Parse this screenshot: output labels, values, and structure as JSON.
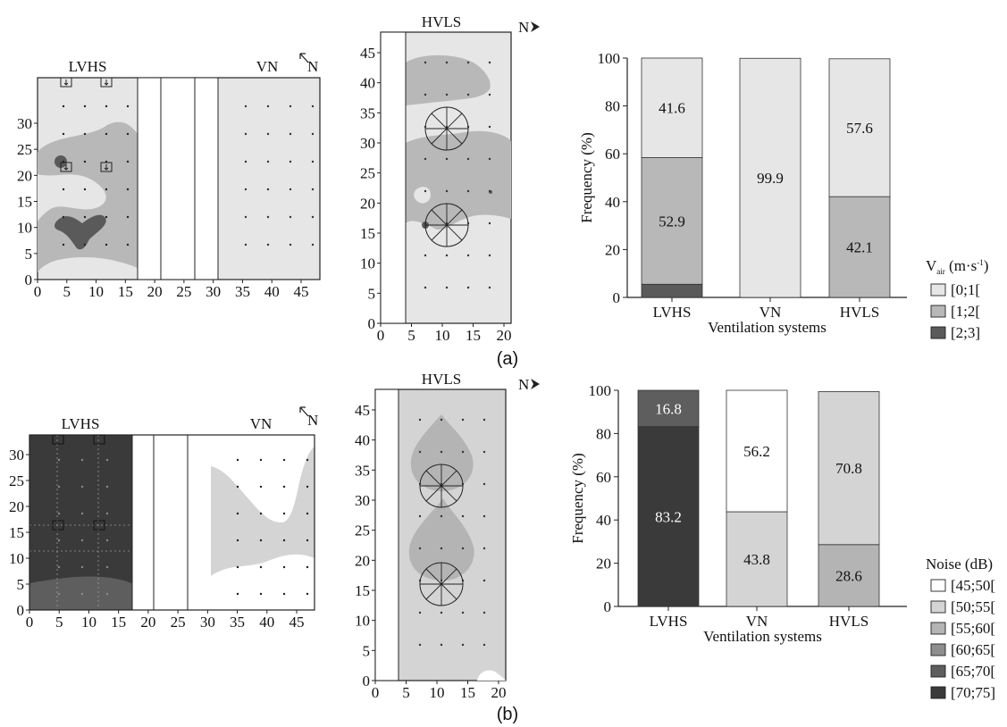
{
  "panels": [
    {
      "label": "(a)",
      "maps": {
        "lvhs_title": "LVHS",
        "vn_title": "VN",
        "hvls_title": "HVLS",
        "north_label": "N",
        "north_label_hvls": "N",
        "left_map_y_ticks": [
          "0",
          "5",
          "10",
          "15",
          "20",
          "25",
          "30"
        ],
        "left_map_x_ticks": [
          "0",
          "5",
          "10",
          "15",
          "20",
          "25",
          "30",
          "35",
          "40",
          "45"
        ],
        "hvls_y_ticks": [
          "0",
          "5",
          "10",
          "15",
          "20",
          "25",
          "30",
          "35",
          "40",
          "45"
        ],
        "hvls_x_ticks": [
          "0",
          "5",
          "10",
          "15",
          "20"
        ]
      },
      "legend": {
        "title": "V",
        "title_sub": "air",
        "title_unit": " (m·s",
        "title_sup": "-1",
        "title_close": ")",
        "items": [
          {
            "label": "[0;1[",
            "color": "#e6e6e6"
          },
          {
            "label": "[1;2[",
            "color": "#b8b8b8"
          },
          {
            "label": "[2;3]",
            "color": "#5a5a5a"
          }
        ]
      }
    },
    {
      "label": "(b)",
      "maps": {
        "lvhs_title": "LVHS",
        "vn_title": "VN",
        "hvls_title": "HVLS",
        "north_label": "N",
        "north_label_hvls": "N",
        "left_map_y_ticks": [
          "0",
          "5",
          "10",
          "15",
          "20",
          "25",
          "30"
        ],
        "left_map_x_ticks": [
          "0",
          "5",
          "10",
          "15",
          "20",
          "25",
          "30",
          "35",
          "40",
          "45"
        ],
        "hvls_y_ticks": [
          "0",
          "5",
          "10",
          "15",
          "20",
          "25",
          "30",
          "35",
          "40",
          "45"
        ],
        "hvls_x_ticks": [
          "0",
          "5",
          "10",
          "15",
          "20"
        ]
      },
      "legend": {
        "title": "Noise (dB)",
        "items": [
          {
            "label": "[45;50[",
            "color": "#ffffff"
          },
          {
            "label": "[50;55[",
            "color": "#d4d4d4"
          },
          {
            "label": "[55;60[",
            "color": "#b4b4b4"
          },
          {
            "label": "[60;65[",
            "color": "#8e8e8e"
          },
          {
            "label": "[65;70[",
            "color": "#5e5e5e"
          },
          {
            "label": "[70;75]",
            "color": "#3a3a3a"
          }
        ]
      }
    }
  ],
  "chart_data": [
    {
      "type": "bar",
      "stacked": true,
      "title": "",
      "xlabel": "Ventilation systems",
      "ylabel": "Frequency (%)",
      "ylim": [
        0,
        100
      ],
      "yticks": [
        "0",
        "20",
        "40",
        "60",
        "80",
        "100"
      ],
      "categories": [
        "LVHS",
        "VN",
        "HVLS"
      ],
      "series": [
        {
          "name": "[2;3]",
          "color": "#5a5a5a",
          "values": [
            5.5,
            0,
            0
          ],
          "labels": [
            "",
            "",
            ""
          ]
        },
        {
          "name": "[1;2[",
          "color": "#b8b8b8",
          "values": [
            52.9,
            0,
            42.1
          ],
          "labels": [
            "52.9",
            "",
            "42.1"
          ]
        },
        {
          "name": "[0;1[",
          "color": "#e6e6e6",
          "values": [
            41.6,
            99.9,
            57.6
          ],
          "labels": [
            "41.6",
            "99.9",
            "57.6"
          ]
        }
      ]
    },
    {
      "type": "bar",
      "stacked": true,
      "title": "",
      "xlabel": "Ventilation systems",
      "ylabel": "Frequency (%)",
      "ylim": [
        0,
        100
      ],
      "yticks": [
        "0",
        "20",
        "40",
        "60",
        "80",
        "100"
      ],
      "categories": [
        "LVHS",
        "VN",
        "HVLS"
      ],
      "series": [
        {
          "name": "[70;75]",
          "color": "#3a3a3a",
          "values": [
            83.2,
            0,
            0
          ],
          "labels": [
            "83.2",
            "",
            ""
          ]
        },
        {
          "name": "[65;70[",
          "color": "#5e5e5e",
          "values": [
            16.8,
            0,
            0
          ],
          "labels": [
            "16.8",
            "",
            ""
          ]
        },
        {
          "name": "[55;60[",
          "color": "#b4b4b4",
          "values": [
            0,
            0,
            28.6
          ],
          "labels": [
            "",
            "",
            "28.6"
          ]
        },
        {
          "name": "[50;55[",
          "color": "#d4d4d4",
          "values": [
            0,
            43.8,
            70.8
          ],
          "labels": [
            "",
            "43.8",
            "70.8"
          ]
        },
        {
          "name": "[45;50[",
          "color": "#ffffff",
          "values": [
            0,
            56.2,
            0
          ],
          "labels": [
            "",
            "56.2",
            ""
          ]
        }
      ]
    }
  ]
}
